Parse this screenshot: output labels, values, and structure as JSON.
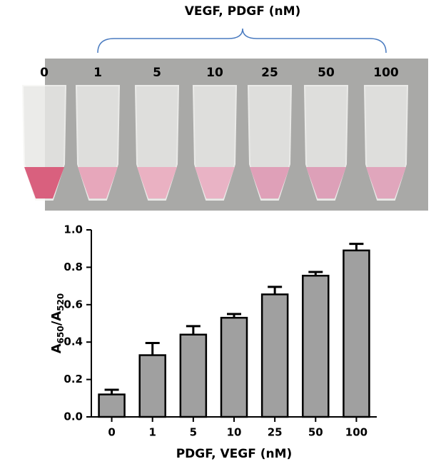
{
  "photo": {
    "title": "VEGF, PDGF (nM)",
    "tube_labels": [
      "0",
      "1",
      "5",
      "10",
      "25",
      "50",
      "100"
    ]
  },
  "chart_data": {
    "type": "bar",
    "categories": [
      "0",
      "1",
      "5",
      "10",
      "25",
      "50",
      "100"
    ],
    "values": [
      0.12,
      0.33,
      0.44,
      0.53,
      0.655,
      0.755,
      0.89
    ],
    "errors": [
      0.025,
      0.065,
      0.045,
      0.02,
      0.04,
      0.02,
      0.035
    ],
    "color": "#a0a0a0",
    "xlabel": "PDGF, VEGF (nM)",
    "ylabel_parts": [
      "A",
      "650",
      "/A",
      "520"
    ],
    "ylim": [
      0,
      1
    ],
    "yticks": [
      {
        "value": 0,
        "label": "0.0"
      },
      {
        "value": 0.2,
        "label": "0.2"
      },
      {
        "value": 0.4,
        "label": "0.4"
      },
      {
        "value": 0.6,
        "label": "0.6"
      },
      {
        "value": 0.8,
        "label": "0.8"
      },
      {
        "value": 1,
        "label": "1.0"
      }
    ]
  }
}
